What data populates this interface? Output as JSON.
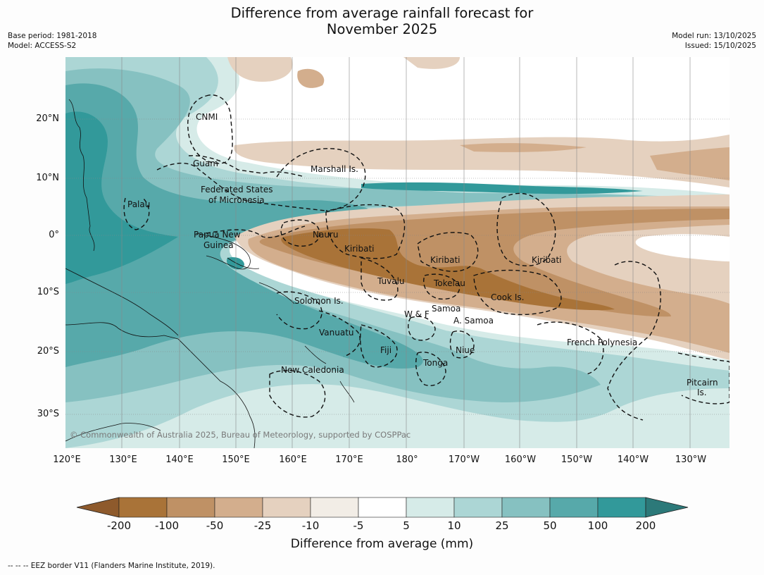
{
  "title_line1": "Difference from average rainfall forecast for",
  "title_line2": "November 2025",
  "meta_left": [
    "Base period: 1981-2018",
    "Model: ACCESS-S2"
  ],
  "meta_right": [
    "Model run: 13/10/2025",
    "Issued: 15/10/2025"
  ],
  "copyright": "© Commonwealth of Australia 2025, Bureau of Meteorology, supported by COSPPac",
  "lat_labels": [
    "20°N",
    "10°N",
    "0°",
    "10°S",
    "20°S",
    "30°S"
  ],
  "lon_labels": [
    "120°E",
    "130°E",
    "140°E",
    "150°E",
    "160°E",
    "170°E",
    "180°",
    "170°W",
    "160°W",
    "150°W",
    "140°W",
    "130°W"
  ],
  "places": {
    "cnmi": "CNMI",
    "guam": "Guam",
    "marshall": "Marshall Is.",
    "fsm_1": "Federated States",
    "fsm_2": "of Micronesia",
    "palau": "Palau",
    "png_1": "Papua New",
    "png_2": "Guinea",
    "nauru": "Nauru",
    "kiribati_w": "Kiribati",
    "kiribati_c": "Kiribati",
    "kiribati_e": "Kiribati",
    "tuvalu": "Tuvalu",
    "tokelau": "Tokelau",
    "cook": "Cook Is.",
    "solomon": "Solomon Is.",
    "wf": "W & F",
    "samoa": "Samoa",
    "asamoa": "A. Samoa",
    "vanuatu": "Vanuatu",
    "fiji": "Fiji",
    "niue": "Niue",
    "tonga": "Tonga",
    "french_polynesia": "French Polynesia",
    "new_caledonia": "New Caledonia",
    "pitcairn_1": "Pitcairn",
    "pitcairn_2": "Is."
  },
  "colorbar": {
    "labels": [
      "-200",
      "-100",
      "-50",
      "-25",
      "-10",
      "-5",
      "5",
      "10",
      "25",
      "50",
      "100",
      "200"
    ],
    "colors": [
      "#8e5a2c",
      "#a97338",
      "#bf9165",
      "#d3ae8d",
      "#e5d1bf",
      "#f2ede6",
      "#ffffff",
      "#d6ebe8",
      "#acd6d5",
      "#86c1c1",
      "#57a9aa",
      "#32999a",
      "#2c7979"
    ],
    "axis_label": "Difference from average (mm)"
  },
  "footer": "--  --  -- EEZ border V11 (Flanders Marine Institute, 2019)."
}
